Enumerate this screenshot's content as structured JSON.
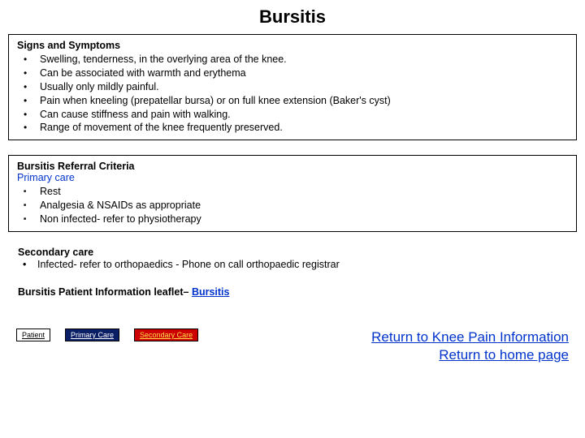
{
  "title": "Bursitis",
  "signs": {
    "heading": "Signs and Symptoms",
    "items": [
      "Swelling, tenderness, in the overlying area of the knee.",
      "Can be associated with  warmth and erythema",
      "Usually only mildly painful.",
      "Pain when kneeling (prepatellar bursa) or on full knee extension (Baker's cyst)",
      "Can cause stiffness and pain with walking.",
      "Range of movement of the knee frequently preserved."
    ]
  },
  "referral": {
    "heading": "Bursitis Referral Criteria",
    "primary_label": "Primary care",
    "items": [
      "Rest",
      "Analgesia & NSAIDs as appropriate",
      "Non infected- refer to physiotherapy"
    ]
  },
  "secondary": {
    "heading": "Secondary care",
    "item": "Infected- refer to orthopaedics - Phone on call  orthopaedic registrar"
  },
  "leaflet": {
    "prefix": "Bursitis Patient Information leaflet– ",
    "link": "Bursitis "
  },
  "buttons": {
    "patient": "Patient",
    "primary": "Primary Care",
    "secondary": "Secondary Care"
  },
  "return_links": {
    "knee": "Return to Knee Pain Information",
    "home": "Return to home page"
  },
  "colors": {
    "link_blue": "#0033cc",
    "btn_primary_bg": "#0b1f66",
    "btn_secondary_bg": "#cc0000",
    "btn_secondary_fg": "#ffe04a"
  }
}
